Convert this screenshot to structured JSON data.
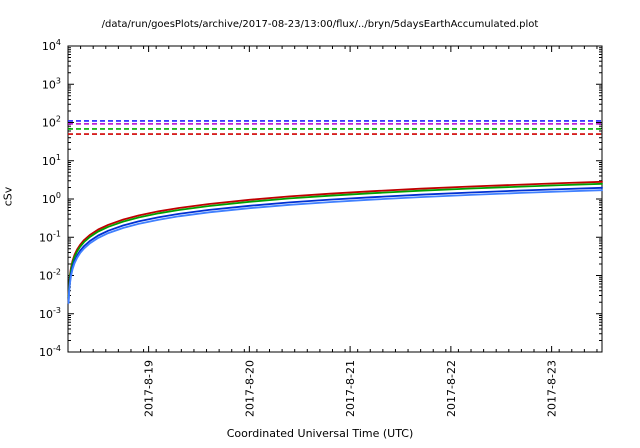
{
  "chart_data": {
    "type": "line",
    "title": "/data/run/goesPlots/archive/2017-08-23/13:00/flux/../bryn/5daysEarthAccumulated.plot",
    "xlabel": "Coordinated Universal Time (UTC)",
    "ylabel": "cSv",
    "y_scale": "log",
    "ylim_exp": [
      -4,
      4
    ],
    "x_range_days": [
      0,
      5.3
    ],
    "x_minor_step_days": 0.125,
    "x_ticks": [
      {
        "t": 0.8,
        "label": "2017-8-19"
      },
      {
        "t": 1.8,
        "label": "2017-8-20"
      },
      {
        "t": 2.8,
        "label": "2017-8-21"
      },
      {
        "t": 3.8,
        "label": "2017-8-22"
      },
      {
        "t": 4.8,
        "label": "2017-8-23"
      }
    ],
    "thresholds": [
      {
        "name": "limit-blue-dashed",
        "value": 110,
        "color": "#2020ff",
        "style": "dashed"
      },
      {
        "name": "limit-magenta-dashed",
        "value": 92,
        "color": "#b000d0",
        "style": "dashed"
      },
      {
        "name": "limit-green-dashed",
        "value": 68,
        "color": "#00b000",
        "style": "dashed"
      },
      {
        "name": "limit-red-dashed",
        "value": 50,
        "color": "#d00000",
        "style": "dashed"
      }
    ],
    "t_days": [
      0.006,
      0.012,
      0.02,
      0.03,
      0.045,
      0.065,
      0.09,
      0.12,
      0.16,
      0.22,
      0.3,
      0.4,
      0.55,
      0.7,
      0.9,
      1.1,
      1.4,
      1.8,
      2.2,
      2.6,
      3.0,
      3.5,
      4.0,
      4.5,
      4.9,
      5.3
    ],
    "series": [
      {
        "name": "accumulated-dose-red",
        "color": "#c00000",
        "values": [
          0.0032,
          0.0064,
          0.0106,
          0.0159,
          0.0239,
          0.0345,
          0.0477,
          0.0636,
          0.0848,
          0.1166,
          0.159,
          0.212,
          0.2915,
          0.371,
          0.477,
          0.583,
          0.742,
          0.954,
          1.166,
          1.378,
          1.59,
          1.855,
          2.12,
          2.385,
          2.597,
          2.809
        ]
      },
      {
        "name": "accumulated-dose-green",
        "color": "#00a000",
        "values": [
          0.0028,
          0.0056,
          0.0094,
          0.0141,
          0.0212,
          0.0306,
          0.0423,
          0.0564,
          0.0752,
          0.1034,
          0.141,
          0.188,
          0.2585,
          0.329,
          0.423,
          0.517,
          0.658,
          0.846,
          1.034,
          1.222,
          1.41,
          1.645,
          1.88,
          2.115,
          2.303,
          2.491
        ]
      },
      {
        "name": "accumulated-dose-blue",
        "color": "#0030d0",
        "values": [
          0.0022,
          0.0044,
          0.0074,
          0.0111,
          0.0167,
          0.0241,
          0.0333,
          0.0444,
          0.0592,
          0.0814,
          0.111,
          0.148,
          0.2035,
          0.259,
          0.333,
          0.407,
          0.518,
          0.666,
          0.814,
          0.962,
          1.11,
          1.295,
          1.48,
          1.665,
          1.813,
          1.961
        ]
      },
      {
        "name": "accumulated-dose-lightblue",
        "color": "#4080ff",
        "values": [
          0.0019,
          0.0038,
          0.0064,
          0.0096,
          0.0144,
          0.0208,
          0.0288,
          0.0384,
          0.0512,
          0.0704,
          0.096,
          0.128,
          0.176,
          0.224,
          0.288,
          0.352,
          0.448,
          0.576,
          0.704,
          0.832,
          0.96,
          1.12,
          1.28,
          1.44,
          1.568,
          1.696
        ]
      }
    ]
  }
}
